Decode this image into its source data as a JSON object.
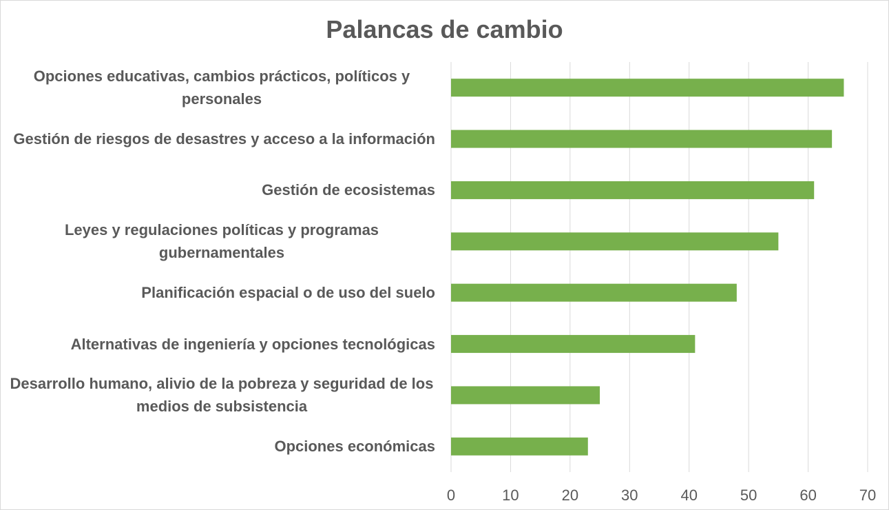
{
  "chart_data": {
    "type": "barh",
    "title": "Palancas de cambio",
    "categories": [
      "Opciones educativas, cambios prácticos, políticos y personales",
      "Gestión de riesgos de desastres y acceso a la información",
      "Gestión de ecosistemas",
      "Leyes y regulaciones políticas y programas gubernamentales",
      "Planificación espacial o de uso del suelo",
      "Alternativas de ingeniería y opciones tecnológicas",
      "Desarrollo humano, alivio de la pobreza y seguridad de los medios de subsistencia",
      "Opciones económicas"
    ],
    "values": [
      66,
      64,
      61,
      55,
      48,
      41,
      25,
      23
    ],
    "color": "#77b04c",
    "xlim": [
      0,
      70
    ],
    "xticks": [
      0,
      10,
      20,
      30,
      40,
      50,
      60,
      70
    ],
    "grid": true
  }
}
